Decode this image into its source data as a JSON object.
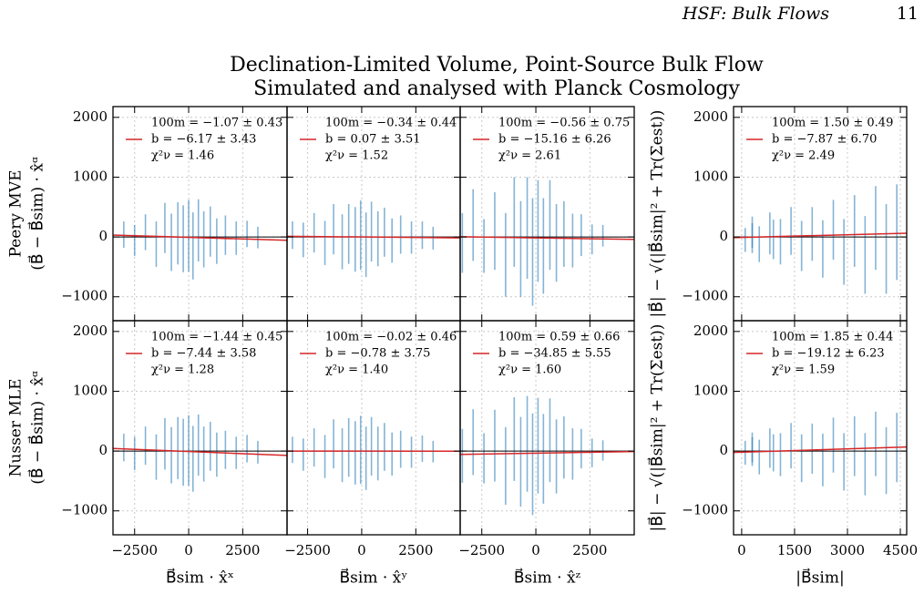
{
  "header": {
    "title": "HSF: Bulk Flows",
    "page": "11"
  },
  "title": [
    "Declination-Limited Volume, Point-Source Bulk Flow",
    "Simulated and analysed with Planck Cosmology"
  ],
  "chart_data": [
    {
      "type": "scatter",
      "color": "#1f77b4",
      "fit_color": "#d62728",
      "x": [
        -3000,
        -2500,
        -2000,
        -1500,
        -1100,
        -800,
        -500,
        -250,
        0,
        200,
        450,
        700,
        1000,
        1300,
        1700,
        2200,
        2700,
        3200
      ],
      "y": [
        40,
        -60,
        80,
        -120,
        150,
        -90,
        60,
        -30,
        20,
        -150,
        110,
        -40,
        90,
        -70,
        30,
        -20,
        50,
        -10
      ],
      "yerr": [
        220,
        260,
        300,
        380,
        420,
        480,
        520,
        560,
        600,
        560,
        520,
        470,
        420,
        380,
        330,
        280,
        220,
        180
      ],
      "fit": {
        "x": [
          -3500,
          4550
        ],
        "y": [
          31,
          -55
        ]
      },
      "annotations": [
        "100m = −1.07 ± 0.43",
        "b = −6.17 ± 3.43",
        "χ²ν = 1.46"
      ],
      "xlim": [
        -3500,
        4550
      ],
      "ylim": [
        -1400,
        2180
      ],
      "xticks": [
        {
          "value": -2500,
          "label": "−2500"
        },
        0,
        2500
      ],
      "yticks": [
        {
          "value": -1000,
          "label": "−1000"
        },
        0,
        1000,
        2000
      ],
      "show_xticklabels": false,
      "show_yticklabels": true,
      "grid": true,
      "ylabel": [
        "Peery MVE",
        "(B⃗ − B⃗sim) · x̂ᵅ"
      ]
    },
    {
      "type": "scatter",
      "color": "#1f77b4",
      "fit_color": "#d62728",
      "x": [
        -3200,
        -2700,
        -2200,
        -1700,
        -1300,
        -900,
        -600,
        -300,
        -50,
        200,
        450,
        750,
        1050,
        1400,
        1800,
        2300,
        2800,
        3300
      ],
      "y": [
        30,
        -50,
        70,
        -100,
        130,
        -80,
        50,
        -40,
        30,
        -130,
        90,
        -30,
        80,
        -60,
        40,
        -10,
        30,
        -20
      ],
      "yerr": [
        230,
        290,
        330,
        370,
        420,
        460,
        500,
        540,
        580,
        540,
        500,
        460,
        410,
        370,
        320,
        270,
        230,
        190
      ],
      "fit": {
        "x": [
          -3450,
          4550
        ],
        "y": [
          12,
          -15
        ]
      },
      "annotations": [
        "100m = −0.34 ± 0.44",
        "b = 0.07 ± 3.51",
        "χ²ν = 1.52"
      ],
      "xlim": [
        -3450,
        4550
      ],
      "ylim": [
        -1400,
        2180
      ],
      "xticks": [
        {
          "value": -2500,
          "label": "−2500"
        },
        0,
        2500
      ],
      "yticks": [
        {
          "value": -1000,
          "label": "−1000"
        },
        0,
        1000,
        2000
      ],
      "show_xticklabels": false,
      "show_yticklabels": false,
      "grid": true
    },
    {
      "type": "scatter",
      "color": "#1f77b4",
      "fit_color": "#d62728",
      "x": [
        -3400,
        -2900,
        -2400,
        -1900,
        -1400,
        -1000,
        -700,
        -400,
        -150,
        100,
        350,
        650,
        950,
        1300,
        1700,
        2100,
        2600,
        3100
      ],
      "y": [
        -100,
        200,
        -150,
        100,
        -300,
        250,
        -200,
        150,
        -250,
        100,
        -150,
        200,
        -100,
        50,
        -60,
        30,
        -40,
        20
      ],
      "yerr": [
        500,
        600,
        450,
        650,
        700,
        750,
        800,
        850,
        900,
        850,
        800,
        750,
        650,
        550,
        450,
        350,
        250,
        180
      ],
      "fit": {
        "x": [
          -3500,
          4550
        ],
        "y": [
          4,
          -41
        ]
      },
      "annotations": [
        "100m = −0.56 ± 0.75",
        "b = −15.16 ± 6.26",
        "χ²ν = 2.61"
      ],
      "xlim": [
        -3500,
        4550
      ],
      "ylim": [
        -1400,
        2180
      ],
      "xticks": [
        {
          "value": -2500,
          "label": "−2500"
        },
        0,
        2500
      ],
      "yticks": [
        {
          "value": -1000,
          "label": "−1000"
        },
        0,
        1000,
        2000
      ],
      "show_xticklabels": false,
      "show_yticklabels": false,
      "grid": true
    },
    {
      "type": "scatter",
      "color": "#1f77b4",
      "fit_color": "#d62728",
      "x": [
        100,
        300,
        500,
        800,
        1100,
        1400,
        1700,
        2000,
        2300,
        2600,
        2900,
        3200,
        3500,
        3800,
        4100,
        4400,
        300,
        900
      ],
      "y": [
        -50,
        80,
        -120,
        60,
        -80,
        100,
        -150,
        50,
        -200,
        120,
        -250,
        100,
        -300,
        150,
        -200,
        80,
        -20,
        -40
      ],
      "yerr": [
        200,
        260,
        300,
        350,
        380,
        400,
        420,
        450,
        480,
        500,
        550,
        600,
        650,
        700,
        750,
        800,
        250,
        330
      ],
      "fit": {
        "x": [
          -230,
          4680
        ],
        "y": [
          -11,
          62
        ]
      },
      "annotations": [
        "100m = 1.50 ± 0.49",
        "b = −7.87 ± 6.70",
        "χ²ν = 2.49"
      ],
      "xlim": [
        -230,
        4680
      ],
      "ylim": [
        -1400,
        2180
      ],
      "xticks": [
        0,
        1500,
        3000,
        4500
      ],
      "yticks": [
        {
          "value": -1000,
          "label": "−1000"
        },
        0,
        1000,
        2000
      ],
      "show_xticklabels": false,
      "show_yticklabels": true,
      "grid": true,
      "ylabel": [
        "|B⃗| − √(|B⃗sim|² + Tr(Σest))"
      ]
    },
    {
      "type": "scatter",
      "color": "#1f77b4",
      "fit_color": "#d62728",
      "x": [
        -3000,
        -2500,
        -2000,
        -1500,
        -1100,
        -800,
        -500,
        -250,
        0,
        200,
        450,
        700,
        1000,
        1300,
        1700,
        2200,
        2700,
        3200
      ],
      "y": [
        60,
        -40,
        90,
        -100,
        120,
        -70,
        50,
        -20,
        10,
        -130,
        100,
        -50,
        80,
        -60,
        20,
        -30,
        40,
        -20
      ],
      "yerr": [
        230,
        280,
        320,
        380,
        430,
        470,
        520,
        560,
        590,
        550,
        510,
        460,
        410,
        370,
        320,
        270,
        230,
        190
      ],
      "fit": {
        "x": [
          -3500,
          4550
        ],
        "y": [
          43,
          -73
        ]
      },
      "annotations": [
        "100m = −1.44 ± 0.45",
        "b = −7.44 ± 3.58",
        "χ²ν = 1.28"
      ],
      "xlim": [
        -3500,
        4550
      ],
      "ylim": [
        -1400,
        2180
      ],
      "xticks": [
        {
          "value": -2500,
          "label": "−2500"
        },
        0,
        2500
      ],
      "yticks": [
        {
          "value": -1000,
          "label": "−1000"
        },
        0,
        1000,
        2000
      ],
      "show_xticklabels": true,
      "show_yticklabels": true,
      "grid": true,
      "xlabel": "B⃗sim · x̂ˣ",
      "ylabel": [
        "Nusser MLE",
        "(B⃗ − B⃗sim) · x̂ᵅ"
      ]
    },
    {
      "type": "scatter",
      "color": "#1f77b4",
      "fit_color": "#d62728",
      "x": [
        -3200,
        -2700,
        -2200,
        -1700,
        -1300,
        -900,
        -600,
        -300,
        -50,
        200,
        450,
        750,
        1050,
        1400,
        1800,
        2300,
        2800,
        3300
      ],
      "y": [
        20,
        -60,
        60,
        -90,
        120,
        -70,
        60,
        -30,
        20,
        -120,
        80,
        -40,
        70,
        -50,
        30,
        -20,
        40,
        -10
      ],
      "yerr": [
        220,
        270,
        320,
        360,
        410,
        450,
        490,
        530,
        570,
        530,
        490,
        450,
        400,
        360,
        310,
        260,
        220,
        180
      ],
      "fit": {
        "x": [
          -3450,
          4550
        ],
        "y": [
          0,
          -2
        ]
      },
      "annotations": [
        "100m = −0.02 ± 0.46",
        "b = −0.78 ± 3.75",
        "χ²ν = 1.40"
      ],
      "xlim": [
        -3450,
        4550
      ],
      "ylim": [
        -1400,
        2180
      ],
      "xticks": [
        {
          "value": -2500,
          "label": "−2500"
        },
        0,
        2500
      ],
      "yticks": [
        {
          "value": -1000,
          "label": "−1000"
        },
        0,
        1000,
        2000
      ],
      "show_xticklabels": true,
      "show_yticklabels": false,
      "grid": true,
      "xlabel": "B⃗sim · x̂ʸ"
    },
    {
      "type": "scatter",
      "color": "#1f77b4",
      "fit_color": "#d62728",
      "x": [
        -3400,
        -2900,
        -2400,
        -1900,
        -1400,
        -1000,
        -700,
        -400,
        -150,
        100,
        350,
        650,
        950,
        1300,
        1700,
        2100,
        2600,
        3100
      ],
      "y": [
        -80,
        150,
        -120,
        90,
        -250,
        200,
        -180,
        120,
        -220,
        90,
        -130,
        180,
        -90,
        60,
        -50,
        40,
        -30,
        10
      ],
      "yerr": [
        450,
        550,
        420,
        600,
        650,
        700,
        750,
        800,
        850,
        800,
        750,
        700,
        620,
        520,
        430,
        330,
        240,
        170
      ],
      "fit": {
        "x": [
          -3500,
          4550
        ],
        "y": [
          -56,
          -8
        ]
      },
      "annotations": [
        "100m = 0.59 ± 0.66",
        "b = −34.85 ± 5.55",
        "χ²ν = 1.60"
      ],
      "xlim": [
        -3500,
        4550
      ],
      "ylim": [
        -1400,
        2180
      ],
      "xticks": [
        {
          "value": -2500,
          "label": "−2500"
        },
        0,
        2500
      ],
      "yticks": [
        {
          "value": -1000,
          "label": "−1000"
        },
        0,
        1000,
        2000
      ],
      "show_xticklabels": true,
      "show_yticklabels": false,
      "grid": true,
      "xlabel": "B⃗sim · x̂ᶻ"
    },
    {
      "type": "scatter",
      "color": "#1f77b4",
      "fit_color": "#d62728",
      "x": [
        100,
        300,
        500,
        800,
        1100,
        1400,
        1700,
        2000,
        2300,
        2600,
        2900,
        3200,
        3500,
        3800,
        4100,
        4400,
        300,
        900
      ],
      "y": [
        -30,
        60,
        -100,
        50,
        -60,
        90,
        -120,
        40,
        -150,
        100,
        -180,
        80,
        -220,
        120,
        -160,
        60,
        -10,
        -30
      ],
      "yerr": [
        200,
        250,
        290,
        330,
        360,
        380,
        400,
        420,
        440,
        460,
        480,
        500,
        520,
        540,
        560,
        580,
        240,
        310
      ],
      "fit": {
        "x": [
          -230,
          4680
        ],
        "y": [
          -23,
          68
        ]
      },
      "annotations": [
        "100m = 1.85 ± 0.44",
        "b = −19.12 ± 6.23",
        "χ²ν = 1.59"
      ],
      "xlim": [
        -230,
        4680
      ],
      "ylim": [
        -1400,
        2180
      ],
      "xticks": [
        0,
        1500,
        3000,
        4500
      ],
      "yticks": [
        {
          "value": -1000,
          "label": "−1000"
        },
        0,
        1000,
        2000
      ],
      "show_xticklabels": true,
      "show_yticklabels": true,
      "grid": true,
      "xlabel": "|B⃗sim|",
      "ylabel": [
        "|B⃗| − √(|B⃗sim|² + Tr(Σest))"
      ]
    }
  ]
}
